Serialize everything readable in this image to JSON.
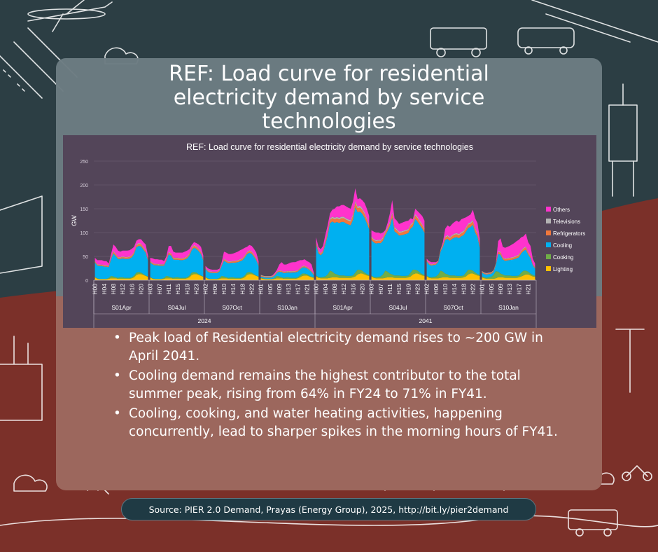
{
  "title": "REF: Load curve for residential electricity demand by service technologies",
  "bullets": [
    "Peak load of Residential electricity demand rises to ~200 GW in April 2041.",
    "Cooling demand remains the highest contributor to the total summer peak, rising from 64% in FY24 to 71% in FY41.",
    "Cooling, cooking, and water heating activities, happening concurrently, lead to sharper spikes in the morning hours of FY41."
  ],
  "source": "Source: PIER 2.0 Demand, Prayas (Energy Group), 2025, http://bit.ly/pier2demand",
  "colors": {
    "Others": "#ff33cc",
    "Televisions": "#b3b3b3",
    "Refrigerators": "#f0783c",
    "Cooling": "#00b0f0",
    "Cooking": "#70ad47",
    "Lighting": "#ffc000"
  },
  "chart_data": {
    "type": "area",
    "stacked": true,
    "title": "REF: Load curve for residential electricity demand by service technologies",
    "ylabel": "GW",
    "ylim": [
      0,
      250
    ],
    "yticks": [
      0,
      50,
      100,
      150,
      200,
      250
    ],
    "years": [
      "2024",
      "2041"
    ],
    "seasons": [
      "S01Apr",
      "S04Jul",
      "S07Oct",
      "S10Jan"
    ],
    "hour_ticks": [
      [
        "H00",
        "H04",
        "H08",
        "H12",
        "H16",
        "H20"
      ],
      [
        "H03",
        "H07",
        "H11",
        "H15",
        "H19",
        "H23"
      ],
      [
        "H02",
        "H06",
        "H10",
        "H14",
        "H18",
        "H22"
      ],
      [
        "H01",
        "H05",
        "H09",
        "H13",
        "H17",
        "H21"
      ],
      [
        "H00",
        "H04",
        "H08",
        "H12",
        "H16",
        "H20"
      ],
      [
        "H03",
        "H07",
        "H11",
        "H15",
        "H19",
        "H23"
      ],
      [
        "H02",
        "H06",
        "H10",
        "H14",
        "H18",
        "H22"
      ],
      [
        "H01",
        "H05",
        "H09",
        "H13",
        "H17",
        "H21"
      ]
    ],
    "legend": [
      "Others",
      "Televisions",
      "Refrigerators",
      "Cooling",
      "Cooking",
      "Lighting"
    ],
    "stack_order": [
      "Lighting",
      "Cooking",
      "Cooling",
      "Refrigerators",
      "Televisions",
      "Others"
    ],
    "blocks": [
      {
        "year": "2024",
        "season": "S01Apr",
        "totals": [
          47,
          42,
          42,
          42,
          40,
          40,
          35,
          55,
          75,
          70,
          62,
          60,
          62,
          62,
          62,
          63,
          66,
          70,
          83,
          86,
          86,
          80,
          75,
          52
        ],
        "cooling_share": 0.64,
        "lighting": [
          6,
          3,
          2,
          2,
          2,
          2,
          3,
          4,
          4,
          4,
          3,
          3,
          3,
          3,
          3,
          3,
          4,
          6,
          11,
          13,
          13,
          11,
          9,
          7
        ],
        "cooking": [
          1,
          1,
          1,
          1,
          1,
          1,
          2,
          5,
          4,
          2,
          2,
          3,
          3,
          2,
          2,
          2,
          2,
          4,
          5,
          4,
          3,
          2,
          1,
          1
        ]
      },
      {
        "year": "2024",
        "season": "S04Jul",
        "totals": [
          47,
          46,
          44,
          44,
          43,
          43,
          40,
          50,
          72,
          72,
          60,
          58,
          58,
          58,
          58,
          60,
          62,
          65,
          74,
          80,
          78,
          75,
          70,
          52
        ],
        "cooling_share": 0.64,
        "lighting": [
          6,
          3,
          2,
          2,
          2,
          2,
          3,
          4,
          4,
          4,
          3,
          3,
          3,
          3,
          3,
          3,
          4,
          6,
          11,
          13,
          13,
          11,
          9,
          7
        ],
        "cooking": [
          1,
          1,
          1,
          1,
          1,
          1,
          2,
          5,
          4,
          2,
          2,
          3,
          3,
          2,
          2,
          2,
          2,
          4,
          5,
          4,
          3,
          2,
          1,
          1
        ]
      },
      {
        "year": "2024",
        "season": "S07Oct",
        "totals": [
          30,
          25,
          23,
          22,
          22,
          22,
          24,
          38,
          60,
          58,
          55,
          55,
          56,
          58,
          60,
          63,
          65,
          68,
          70,
          74,
          72,
          66,
          58,
          40
        ],
        "cooling_share": 0.55,
        "lighting": [
          6,
          3,
          2,
          2,
          2,
          2,
          3,
          4,
          4,
          4,
          3,
          3,
          3,
          3,
          3,
          3,
          4,
          6,
          11,
          13,
          13,
          11,
          9,
          7
        ],
        "cooking": [
          1,
          1,
          1,
          1,
          1,
          1,
          2,
          5,
          4,
          2,
          2,
          3,
          3,
          2,
          2,
          2,
          2,
          4,
          5,
          4,
          3,
          2,
          1,
          1
        ]
      },
      {
        "year": "2024",
        "season": "S10Jan",
        "totals": [
          10,
          8,
          8,
          8,
          8,
          10,
          15,
          22,
          33,
          38,
          33,
          33,
          35,
          37,
          38,
          38,
          40,
          42,
          42,
          44,
          40,
          38,
          33,
          15
        ],
        "cooling_share": 0.3,
        "lighting": [
          4,
          3,
          2,
          2,
          2,
          2,
          3,
          4,
          4,
          4,
          3,
          3,
          3,
          3,
          3,
          3,
          4,
          6,
          9,
          10,
          10,
          8,
          6,
          5
        ],
        "cooking": [
          1,
          1,
          1,
          1,
          1,
          1,
          2,
          5,
          4,
          2,
          2,
          3,
          3,
          2,
          2,
          2,
          2,
          4,
          5,
          4,
          3,
          2,
          1,
          1
        ]
      },
      {
        "year": "2041",
        "season": "S01Apr",
        "totals": [
          90,
          70,
          65,
          72,
          95,
          115,
          140,
          148,
          150,
          155,
          155,
          158,
          158,
          155,
          152,
          150,
          165,
          193,
          170,
          172,
          168,
          162,
          150,
          135
        ],
        "cooling_share": 0.71,
        "lighting": [
          8,
          5,
          4,
          4,
          4,
          4,
          5,
          6,
          6,
          6,
          5,
          5,
          5,
          5,
          5,
          5,
          6,
          8,
          12,
          14,
          14,
          12,
          10,
          9
        ],
        "cooking": [
          2,
          2,
          2,
          3,
          4,
          8,
          15,
          12,
          8,
          6,
          5,
          5,
          5,
          4,
          4,
          4,
          4,
          8,
          10,
          8,
          6,
          4,
          3,
          2
        ]
      },
      {
        "year": "2041",
        "season": "S04Jul",
        "totals": [
          105,
          102,
          100,
          100,
          98,
          100,
          105,
          120,
          140,
          168,
          130,
          125,
          118,
          120,
          122,
          124,
          125,
          130,
          128,
          150,
          145,
          140,
          135,
          125
        ],
        "cooling_share": 0.71,
        "lighting": [
          8,
          5,
          4,
          4,
          4,
          4,
          5,
          6,
          6,
          6,
          5,
          5,
          5,
          5,
          5,
          5,
          6,
          8,
          12,
          14,
          14,
          12,
          10,
          9
        ],
        "cooking": [
          2,
          2,
          2,
          3,
          4,
          8,
          15,
          12,
          8,
          6,
          5,
          5,
          5,
          4,
          4,
          4,
          4,
          8,
          10,
          8,
          6,
          4,
          3,
          2
        ]
      },
      {
        "year": "2041",
        "season": "S07Oct",
        "totals": [
          45,
          40,
          38,
          38,
          38,
          40,
          62,
          80,
          108,
          115,
          112,
          118,
          122,
          125,
          122,
          128,
          130,
          132,
          135,
          138,
          148,
          130,
          120,
          88
        ],
        "cooling_share": 0.65,
        "lighting": [
          8,
          5,
          4,
          4,
          4,
          4,
          5,
          6,
          6,
          6,
          5,
          5,
          5,
          5,
          5,
          5,
          6,
          8,
          12,
          14,
          14,
          12,
          10,
          9
        ],
        "cooking": [
          2,
          2,
          2,
          3,
          4,
          8,
          15,
          12,
          8,
          6,
          5,
          5,
          5,
          4,
          4,
          4,
          4,
          8,
          10,
          8,
          6,
          4,
          3,
          2
        ]
      },
      {
        "year": "2041",
        "season": "S10Jan",
        "totals": [
          18,
          15,
          15,
          15,
          15,
          15,
          30,
          82,
          88,
          70,
          68,
          70,
          72,
          75,
          78,
          82,
          85,
          90,
          92,
          98,
          80,
          72,
          45,
          35
        ],
        "cooling_share": 0.45,
        "lighting": [
          6,
          4,
          3,
          3,
          3,
          3,
          4,
          6,
          6,
          6,
          5,
          5,
          5,
          5,
          5,
          5,
          6,
          8,
          10,
          12,
          12,
          10,
          8,
          7
        ],
        "cooking": [
          2,
          2,
          2,
          3,
          4,
          8,
          15,
          12,
          8,
          6,
          5,
          5,
          5,
          4,
          4,
          4,
          4,
          8,
          10,
          8,
          6,
          4,
          3,
          2
        ]
      }
    ]
  }
}
